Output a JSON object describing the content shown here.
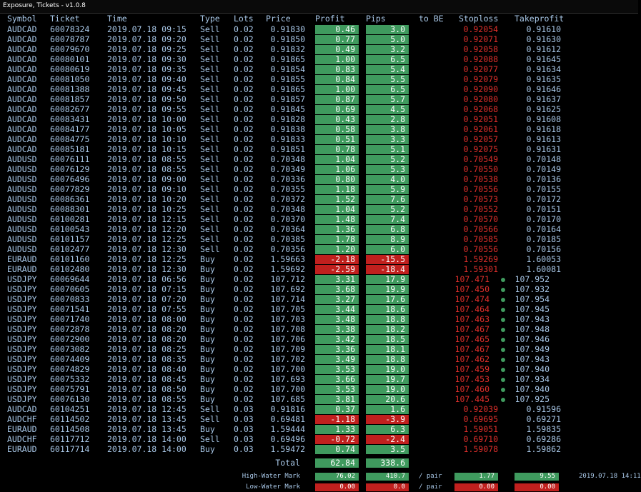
{
  "window_title": "Exposure, Tickets - v1.0.8",
  "headers": [
    "Symbol",
    "Ticket",
    "Time",
    "Type",
    "Lots",
    "Price",
    "Profit",
    "Pips",
    "to BE",
    "Stoploss",
    "Takeprofit"
  ],
  "rows": [
    [
      "AUDCAD",
      "60078324",
      "2019.07.18 09:15",
      "Sell",
      "0.02",
      "0.91830",
      "0.46",
      "3.0",
      "0.92054",
      "0.91610"
    ],
    [
      "AUDCAD",
      "60078787",
      "2019.07.18 09:20",
      "Sell",
      "0.02",
      "0.91850",
      "0.77",
      "5.0",
      "0.92071",
      "0.91630"
    ],
    [
      "AUDCAD",
      "60079670",
      "2019.07.18 09:25",
      "Sell",
      "0.02",
      "0.91832",
      "0.49",
      "3.2",
      "0.92058",
      "0.91612"
    ],
    [
      "AUDCAD",
      "60080101",
      "2019.07.18 09:30",
      "Sell",
      "0.02",
      "0.91865",
      "1.00",
      "6.5",
      "0.92088",
      "0.91645"
    ],
    [
      "AUDCAD",
      "60080619",
      "2019.07.18 09:35",
      "Sell",
      "0.02",
      "0.91854",
      "0.83",
      "5.4",
      "0.92077",
      "0.91634"
    ],
    [
      "AUDCAD",
      "60081050",
      "2019.07.18 09:40",
      "Sell",
      "0.02",
      "0.91855",
      "0.84",
      "5.5",
      "0.92079",
      "0.91635"
    ],
    [
      "AUDCAD",
      "60081388",
      "2019.07.18 09:45",
      "Sell",
      "0.02",
      "0.91865",
      "1.00",
      "6.5",
      "0.92090",
      "0.91646"
    ],
    [
      "AUDCAD",
      "60081857",
      "2019.07.18 09:50",
      "Sell",
      "0.02",
      "0.91857",
      "0.87",
      "5.7",
      "0.92080",
      "0.91637"
    ],
    [
      "AUDCAD",
      "60082677",
      "2019.07.18 09:55",
      "Sell",
      "0.02",
      "0.91845",
      "0.69",
      "4.5",
      "0.92068",
      "0.91625"
    ],
    [
      "AUDCAD",
      "60083431",
      "2019.07.18 10:00",
      "Sell",
      "0.02",
      "0.91828",
      "0.43",
      "2.8",
      "0.92051",
      "0.91608"
    ],
    [
      "AUDCAD",
      "60084177",
      "2019.07.18 10:05",
      "Sell",
      "0.02",
      "0.91838",
      "0.58",
      "3.8",
      "0.92061",
      "0.91618"
    ],
    [
      "AUDCAD",
      "60084775",
      "2019.07.18 10:10",
      "Sell",
      "0.02",
      "0.91833",
      "0.51",
      "3.3",
      "0.92057",
      "0.91613"
    ],
    [
      "AUDCAD",
      "60085181",
      "2019.07.18 10:15",
      "Sell",
      "0.02",
      "0.91851",
      "0.78",
      "5.1",
      "0.92075",
      "0.91631"
    ],
    [
      "AUDUSD",
      "60076111",
      "2019.07.18 08:55",
      "Sell",
      "0.02",
      "0.70348",
      "1.04",
      "5.2",
      "0.70549",
      "0.70148"
    ],
    [
      "AUDUSD",
      "60076129",
      "2019.07.18 08:55",
      "Sell",
      "0.02",
      "0.70349",
      "1.06",
      "5.3",
      "0.70550",
      "0.70149"
    ],
    [
      "AUDUSD",
      "60076496",
      "2019.07.18 09:00",
      "Sell",
      "0.02",
      "0.70336",
      "0.80",
      "4.0",
      "0.70538",
      "0.70136"
    ],
    [
      "AUDUSD",
      "60077829",
      "2019.07.18 09:10",
      "Sell",
      "0.02",
      "0.70355",
      "1.18",
      "5.9",
      "0.70556",
      "0.70155"
    ],
    [
      "AUDUSD",
      "60086361",
      "2019.07.18 10:20",
      "Sell",
      "0.02",
      "0.70372",
      "1.52",
      "7.6",
      "0.70573",
      "0.70172"
    ],
    [
      "AUDUSD",
      "60088301",
      "2019.07.18 10:25",
      "Sell",
      "0.02",
      "0.70348",
      "1.04",
      "5.2",
      "0.70552",
      "0.70151"
    ],
    [
      "AUDUSD",
      "60100281",
      "2019.07.18 12:15",
      "Sell",
      "0.02",
      "0.70370",
      "1.48",
      "7.4",
      "0.70570",
      "0.70170"
    ],
    [
      "AUDUSD",
      "60100543",
      "2019.07.18 12:20",
      "Sell",
      "0.02",
      "0.70364",
      "1.36",
      "6.8",
      "0.70566",
      "0.70164"
    ],
    [
      "AUDUSD",
      "60101157",
      "2019.07.18 12:25",
      "Sell",
      "0.02",
      "0.70385",
      "1.78",
      "8.9",
      "0.70585",
      "0.70185"
    ],
    [
      "AUDUSD",
      "60102477",
      "2019.07.18 12:30",
      "Sell",
      "0.02",
      "0.70356",
      "1.20",
      "6.0",
      "0.70556",
      "0.70156"
    ],
    [
      "EURAUD",
      "60101160",
      "2019.07.18 12:25",
      "Buy",
      "0.02",
      "1.59663",
      "-2.18",
      "-15.5",
      "1.59269",
      "1.60053"
    ],
    [
      "EURAUD",
      "60102480",
      "2019.07.18 12:30",
      "Buy",
      "0.02",
      "1.59692",
      "-2.59",
      "-18.4",
      "1.59301",
      "1.60081"
    ],
    [
      "USDJPY",
      "60069644",
      "2019.07.18 06:56",
      "Buy",
      "0.02",
      "107.712",
      "3.31",
      "17.9",
      "107.471",
      "107.952"
    ],
    [
      "USDJPY",
      "60070605",
      "2019.07.18 07:15",
      "Buy",
      "0.02",
      "107.692",
      "3.68",
      "19.9",
      "107.450",
      "107.932"
    ],
    [
      "USDJPY",
      "60070833",
      "2019.07.18 07:20",
      "Buy",
      "0.02",
      "107.714",
      "3.27",
      "17.6",
      "107.474",
      "107.954"
    ],
    [
      "USDJPY",
      "60071541",
      "2019.07.18 07:55",
      "Buy",
      "0.02",
      "107.705",
      "3.44",
      "18.6",
      "107.464",
      "107.945"
    ],
    [
      "USDJPY",
      "60071740",
      "2019.07.18 08:00",
      "Buy",
      "0.02",
      "107.703",
      "3.48",
      "18.8",
      "107.463",
      "107.943"
    ],
    [
      "USDJPY",
      "60072878",
      "2019.07.18 08:20",
      "Buy",
      "0.02",
      "107.708",
      "3.38",
      "18.2",
      "107.467",
      "107.948"
    ],
    [
      "USDJPY",
      "60072900",
      "2019.07.18 08:20",
      "Buy",
      "0.02",
      "107.706",
      "3.42",
      "18.5",
      "107.465",
      "107.946"
    ],
    [
      "USDJPY",
      "60073082",
      "2019.07.18 08:25",
      "Buy",
      "0.02",
      "107.709",
      "3.36",
      "18.1",
      "107.467",
      "107.949"
    ],
    [
      "USDJPY",
      "60074409",
      "2019.07.18 08:35",
      "Buy",
      "0.02",
      "107.702",
      "3.49",
      "18.8",
      "107.462",
      "107.943"
    ],
    [
      "USDJPY",
      "60074829",
      "2019.07.18 08:40",
      "Buy",
      "0.02",
      "107.700",
      "3.53",
      "19.0",
      "107.459",
      "107.940"
    ],
    [
      "USDJPY",
      "60075332",
      "2019.07.18 08:45",
      "Buy",
      "0.02",
      "107.693",
      "3.66",
      "19.7",
      "107.453",
      "107.934"
    ],
    [
      "USDJPY",
      "60075791",
      "2019.07.18 08:50",
      "Buy",
      "0.02",
      "107.700",
      "3.53",
      "19.0",
      "107.460",
      "107.940"
    ],
    [
      "USDJPY",
      "60076130",
      "2019.07.18 08:55",
      "Buy",
      "0.02",
      "107.685",
      "3.81",
      "20.6",
      "107.445",
      "107.925"
    ],
    [
      "AUDCAD",
      "60104251",
      "2019.07.18 12:45",
      "Sell",
      "0.03",
      "0.91816",
      "0.37",
      "1.6",
      "0.92039",
      "0.91596"
    ],
    [
      "AUDCHF",
      "60114502",
      "2019.07.18 13:45",
      "Sell",
      "0.03",
      "0.69481",
      "-1.18",
      "-3.9",
      "0.69695",
      "0.69271"
    ],
    [
      "EURAUD",
      "60114508",
      "2019.07.18 13:45",
      "Buy",
      "0.03",
      "1.59444",
      "1.33",
      "6.3",
      "1.59051",
      "1.59835"
    ],
    [
      "AUDCHF",
      "60117712",
      "2019.07.18 14:00",
      "Sell",
      "0.03",
      "0.69496",
      "-0.72",
      "-2.4",
      "0.69710",
      "0.69286"
    ],
    [
      "EURAUD",
      "60117714",
      "2019.07.18 14:00",
      "Buy",
      "0.03",
      "1.59472",
      "0.74",
      "3.5",
      "1.59078",
      "1.59862"
    ]
  ],
  "dot_rows": [
    25,
    26,
    27,
    28,
    29,
    30,
    31,
    32,
    33,
    34,
    35,
    36,
    37
  ],
  "total": {
    "label": "Total",
    "profit": "62.84",
    "pips": "338.6"
  },
  "high_water": {
    "label": "High-Water Mark",
    "profit": "76.02",
    "pips": "410.7",
    "per": "/ pair",
    "sl": "1.77",
    "tp": "9.55",
    "time": "2019.07.18 14:11"
  },
  "low_water": {
    "label": "Low-Water Mark",
    "profit": "0.00",
    "pips": "0.0",
    "per": "/ pair",
    "sl": "0.00",
    "tp": "0.00"
  }
}
